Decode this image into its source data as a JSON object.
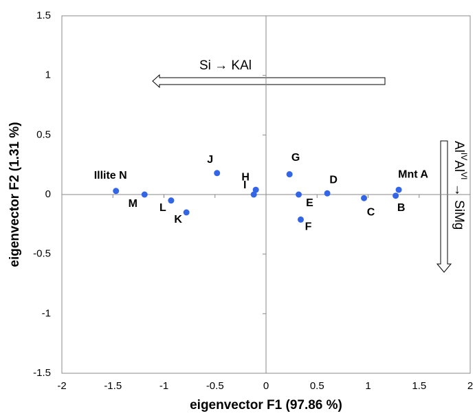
{
  "chart_data": {
    "type": "scatter",
    "x_label": "eigenvector F1 (97.86 %)",
    "y_label": "eigenvector F2 (1.31 %)",
    "color": "#3366e6",
    "series": [
      {
        "names": [
          "Illite N",
          "M",
          "L",
          "K",
          "J",
          "H",
          "I",
          "G",
          "E",
          "F",
          "D",
          "C",
          "B",
          "Mnt A"
        ],
        "x": [
          -1.47,
          -1.19,
          -0.93,
          -0.78,
          -0.48,
          -0.1,
          -0.12,
          0.23,
          0.32,
          0.34,
          0.6,
          0.96,
          1.27,
          1.3
        ],
        "values": [
          0.03,
          0,
          -0.05,
          -0.15,
          0.18,
          0.04,
          0,
          0.17,
          0,
          -0.21,
          0.01,
          -0.03,
          -0.01,
          0.04
        ]
      }
    ],
    "xlim": [
      -2,
      2
    ],
    "xticks": [
      -2,
      -1.5,
      -1,
      -0.5,
      0,
      0.5,
      1,
      1.5,
      2
    ],
    "ylim": [
      -1.5,
      1.5
    ],
    "yticks": [
      -1.5,
      -1,
      -0.5,
      0,
      0.5,
      1,
      1.5
    ],
    "annotations": {
      "horizontal": "Si → KAl",
      "vertical": [
        {
          "text": "Al"
        },
        {
          "text": "IV",
          "sup": true
        },
        {
          "text": "Al"
        },
        {
          "text": "VI",
          "sup": true
        },
        {
          "text": " → SiMg"
        }
      ]
    }
  }
}
